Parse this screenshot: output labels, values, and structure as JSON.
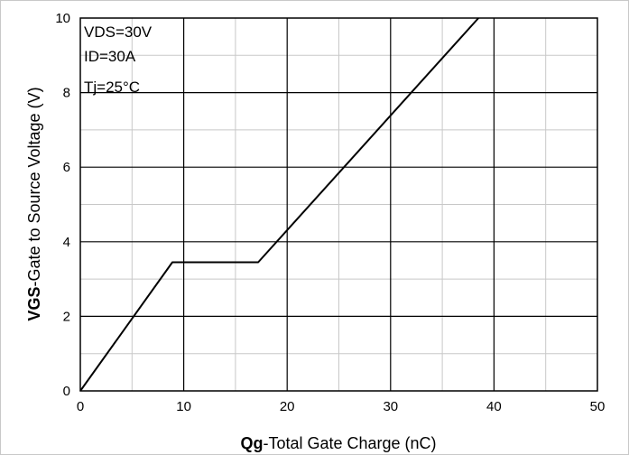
{
  "chart_data": {
    "type": "line",
    "xlabel_bold": "Qg",
    "xlabel_rest": "-Total Gate Charge (nC)",
    "ylabel_bold": "VGS",
    "ylabel_rest": "-Gate to Source Voltage (V)",
    "xlim": [
      0,
      50
    ],
    "ylim": [
      0,
      10
    ],
    "x_ticks": [
      0,
      10,
      20,
      30,
      40,
      50
    ],
    "y_ticks": [
      0,
      2,
      4,
      6,
      8,
      10
    ],
    "x_minor_step": 5,
    "y_minor_step": 1,
    "grid": true,
    "annotations": [
      "VDS=30V",
      "ID=30A",
      "Tj=25°C"
    ],
    "series": [
      {
        "x": [
          0,
          8.9,
          17.2,
          38.5
        ],
        "y": [
          0,
          3.45,
          3.45,
          10
        ],
        "color": "#000000"
      }
    ]
  }
}
